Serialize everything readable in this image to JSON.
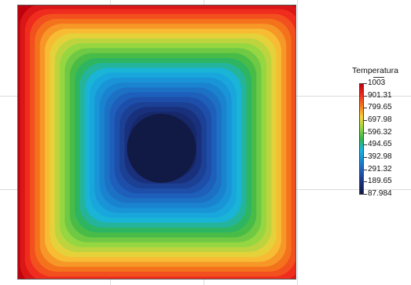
{
  "chart_data": {
    "type": "heatmap",
    "title": "",
    "xlabel": "",
    "ylabel": "",
    "grid": true,
    "legend_position": "right",
    "colorbar": {
      "title": "Temperatura",
      "min": 87.984,
      "max": 1003,
      "tick_labels": [
        "1003",
        "901.31",
        "799.65",
        "697.98",
        "596.32",
        "494.65",
        "392.98",
        "291.32",
        "189.65",
        "87.984"
      ],
      "tick_values": [
        1003,
        901.31,
        799.65,
        697.98,
        596.32,
        494.65,
        392.98,
        291.32,
        189.65,
        87.984
      ],
      "colors": [
        "#c0000c",
        "#ef2a1e",
        "#f5781d",
        "#f7d13a",
        "#94d641",
        "#33b549",
        "#17b4e0",
        "#1a86d2",
        "#1e56b5",
        "#182d78",
        "#111a44"
      ]
    },
    "field": {
      "description_shape": "square domain, hot edges cooling to a cold centre",
      "boundary_value": 1003,
      "center_value": 87.984
    }
  }
}
